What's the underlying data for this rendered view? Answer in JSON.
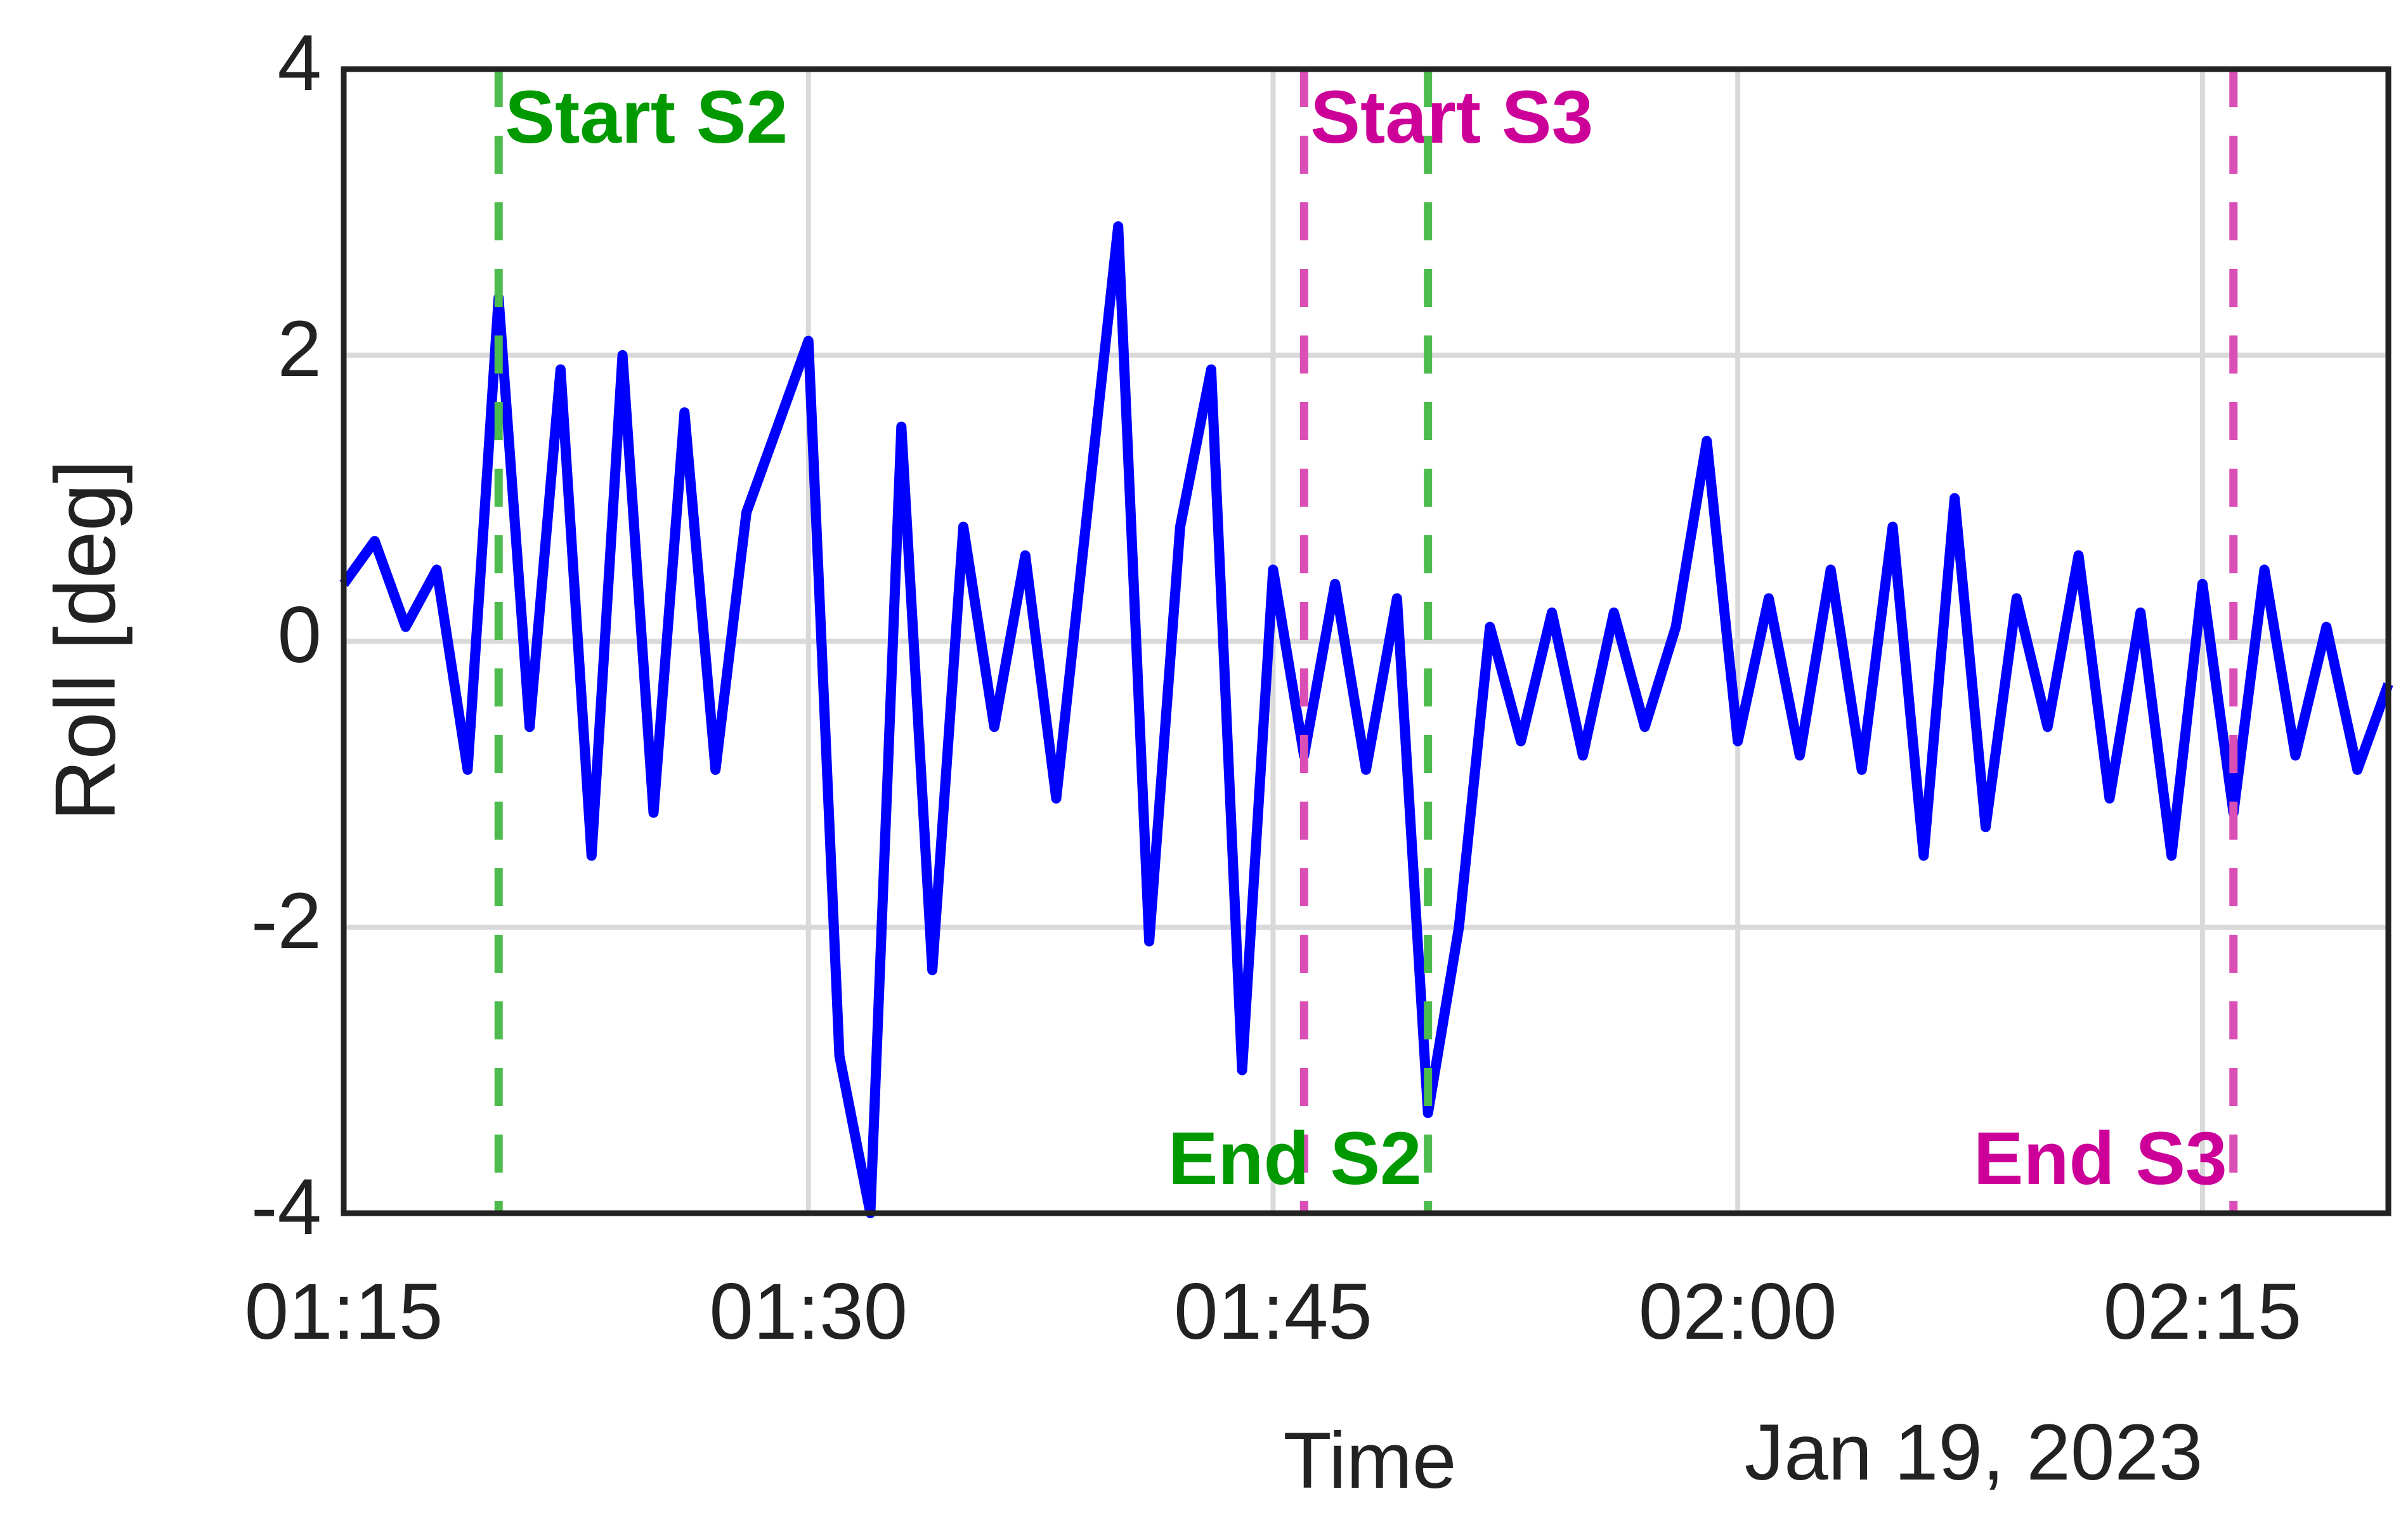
{
  "chart_data": {
    "type": "line",
    "ylabel": "Roll [deg]",
    "xlabel": "Time",
    "date_label": "Jan 19, 2023",
    "color": "#0000ff",
    "grid": true,
    "x": [
      "01:15",
      "01:16",
      "01:17",
      "01:18",
      "01:19",
      "01:20",
      "01:21",
      "01:22",
      "01:23",
      "01:24",
      "01:25",
      "01:26",
      "01:27",
      "01:28",
      "01:29",
      "01:30",
      "01:31",
      "01:32",
      "01:33",
      "01:34",
      "01:35",
      "01:36",
      "01:37",
      "01:38",
      "01:39",
      "01:40",
      "01:41",
      "01:42",
      "01:43",
      "01:44",
      "01:45",
      "01:46",
      "01:47",
      "01:48",
      "01:49",
      "01:50",
      "01:51",
      "01:52",
      "01:53",
      "01:54",
      "01:55",
      "01:56",
      "01:57",
      "01:58",
      "01:59",
      "02:00",
      "02:01",
      "02:02",
      "02:03",
      "02:04",
      "02:05",
      "02:06",
      "02:07",
      "02:08",
      "02:09",
      "02:10",
      "02:11",
      "02:12",
      "02:13",
      "02:14",
      "02:15",
      "02:16",
      "02:17",
      "02:18",
      "02:19",
      "02:20",
      "02:21"
    ],
    "values": [
      0.4,
      0.7,
      0.1,
      0.5,
      -0.9,
      2.4,
      -0.6,
      1.9,
      -1.5,
      2.0,
      -1.2,
      1.6,
      -0.9,
      0.9,
      1.5,
      2.1,
      -2.9,
      -4.0,
      1.5,
      -2.3,
      0.8,
      -0.6,
      0.6,
      -1.1,
      0.9,
      2.9,
      -2.1,
      0.8,
      1.9,
      -3.0,
      0.5,
      -0.8,
      0.4,
      -0.9,
      0.3,
      -3.3,
      -2.0,
      0.1,
      -0.7,
      0.2,
      -0.8,
      0.2,
      -0.6,
      0.1,
      1.4,
      -0.7,
      0.3,
      -0.8,
      0.5,
      -0.9,
      0.8,
      -1.5,
      1.0,
      -1.3,
      0.3,
      -0.6,
      0.6,
      -1.1,
      0.2,
      -1.5,
      0.4,
      -1.2,
      0.5,
      -0.8,
      0.1,
      -0.9,
      -0.3
    ],
    "xlim": [
      "01:15",
      "02:21"
    ],
    "xticks": [
      "01:15",
      "01:30",
      "01:45",
      "02:00",
      "02:15"
    ],
    "ylim": [
      -4,
      4
    ],
    "yticks": [
      -4,
      -2,
      0,
      2,
      4
    ],
    "markers": [
      {
        "x": "01:20",
        "label": "Start S2",
        "color": "#4dbb4d",
        "label_color": "#009900",
        "label_position": "top"
      },
      {
        "x": "01:46",
        "label": "Start S3",
        "color": "#d94fb5",
        "label_color": "#cc0099",
        "label_position": "top"
      },
      {
        "x": "01:50",
        "label": "End S2",
        "color": "#4dbb4d",
        "label_color": "#009900",
        "label_position": "bottom"
      },
      {
        "x": "02:16",
        "label": "End S3",
        "color": "#d94fb5",
        "label_color": "#cc0099",
        "label_position": "bottom"
      }
    ]
  }
}
